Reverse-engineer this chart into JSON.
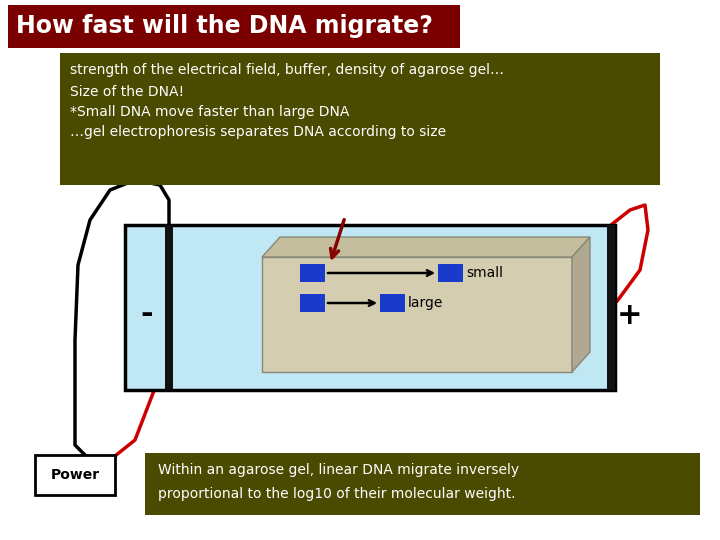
{
  "bg_color": "#ffffff",
  "title_text": "How fast will the DNA migrate?",
  "title_bg": "#7a0000",
  "title_fg": "#ffffff",
  "info_box_bg": "#4a4a00",
  "info_box_fg": "#ffffff",
  "info_line1": "strength of the electrical field, buffer, density of agarose gel…",
  "info_line2": "Size of the DNA!",
  "info_line3": "*Small DNA move faster than large DNA",
  "info_line4": "…gel electrophoresis separates DNA according to size",
  "bottom_box_bg": "#4a4a00",
  "bottom_box_fg": "#ffffff",
  "bottom_text1": "Within an agarose gel, linear DNA migrate inversely",
  "bottom_text2": "proportional to the log10 of their molecular weight.",
  "power_box_bg": "#ffffff",
  "power_box_fg": "#000000",
  "power_text": "Power",
  "water_color": "#c0e8f4",
  "tray_border": "#000000",
  "gel_color": "#d4cdb0",
  "gel_top_color": "#c4bd9e",
  "gel_right_color": "#b0a890",
  "gel_border": "#888878",
  "dna_color": "#1a3acc",
  "arrow_color": "#000000",
  "sample_arrow_color": "#880000",
  "wire_black": "#000000",
  "wire_red": "#cc0000",
  "electrode_color": "#111111",
  "minus_color": "#000000",
  "plus_color": "#000000"
}
